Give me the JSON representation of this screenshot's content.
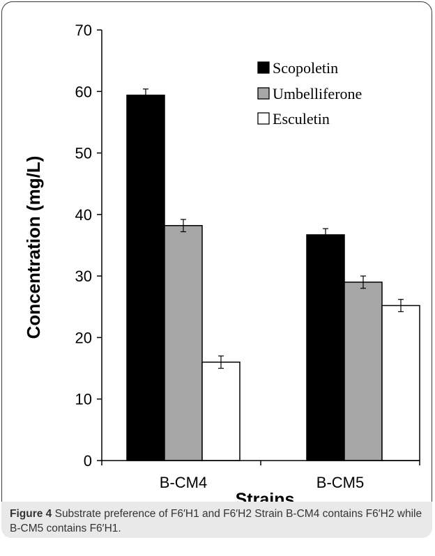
{
  "chart_data": {
    "type": "bar",
    "categories": [
      "B-CM4",
      "B-CM5"
    ],
    "series": [
      {
        "name": "Scopoletin",
        "values": [
          59.4,
          36.7
        ],
        "errors": [
          1.0,
          1.0
        ],
        "color": "#000000"
      },
      {
        "name": "Umbelliferone",
        "values": [
          38.2,
          29.0
        ],
        "errors": [
          1.0,
          1.0
        ],
        "color": "#a6a6a6"
      },
      {
        "name": "Esculetin",
        "values": [
          16.0,
          25.2
        ],
        "errors": [
          1.0,
          1.0
        ],
        "color": "#ffffff"
      }
    ],
    "title": "",
    "xlabel": "Strains",
    "ylabel": "Concentration (mg/L)",
    "ylim": [
      0,
      70
    ],
    "yticks": [
      "0",
      "10",
      "20",
      "30",
      "40",
      "50",
      "60",
      "70"
    ],
    "grid": false,
    "legend_position": "top-right"
  },
  "caption": {
    "label": "Figure 4",
    "text": " Substrate preference of F6′H1 and F6′H2 Strain B-CM4 contains F6′H2 while B-CM5 contains F6′H1."
  }
}
